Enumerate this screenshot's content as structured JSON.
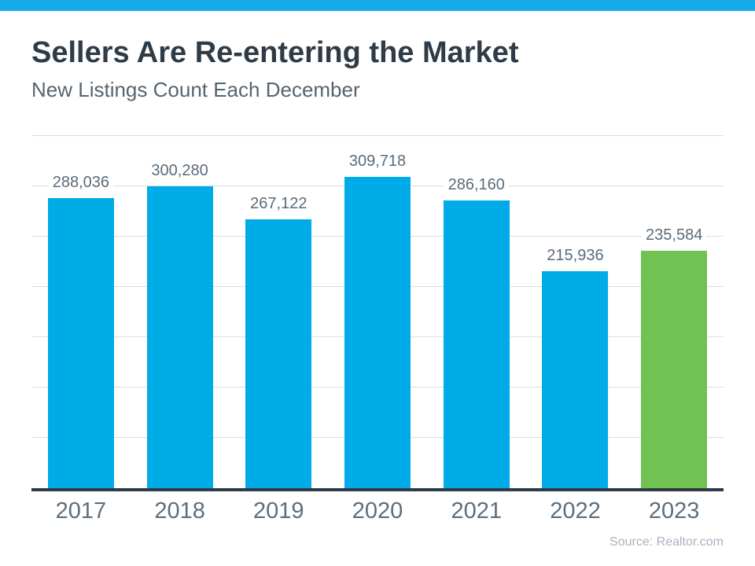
{
  "banner": {
    "color": "#17ACE9"
  },
  "header": {
    "title": "Sellers Are Re-entering the Market",
    "subtitle": "New Listings Count Each December"
  },
  "chart_data": {
    "type": "bar",
    "title": "Sellers Are Re-entering the Market",
    "subtitle": "New Listings Count Each December",
    "categories": [
      "2017",
      "2018",
      "2019",
      "2020",
      "2021",
      "2022",
      "2023"
    ],
    "values": [
      288036,
      300280,
      267122,
      309718,
      286160,
      215936,
      235584
    ],
    "value_labels": [
      "288,036",
      "300,280",
      "267,122",
      "309,718",
      "286,160",
      "215,936",
      "235,584"
    ],
    "bar_colors": [
      "#00ACE8",
      "#00ACE8",
      "#00ACE8",
      "#00ACE8",
      "#00ACE8",
      "#00ACE8",
      "#70C352"
    ],
    "xlabel": "",
    "ylabel": "",
    "ylim": [
      0,
      350000
    ],
    "grid_step": 50000,
    "grid": true,
    "legend": false,
    "source": "Source: Realtor.com"
  },
  "colors": {
    "accent_blue": "#00ACE8",
    "accent_green": "#70C352",
    "axis": "#2E3A47",
    "gridline": "#D9DDE2",
    "title_text": "#2F3B46",
    "subtitle_text": "#54656F",
    "label_text": "#5A6B7B",
    "source_text": "#A8B2BE"
  }
}
